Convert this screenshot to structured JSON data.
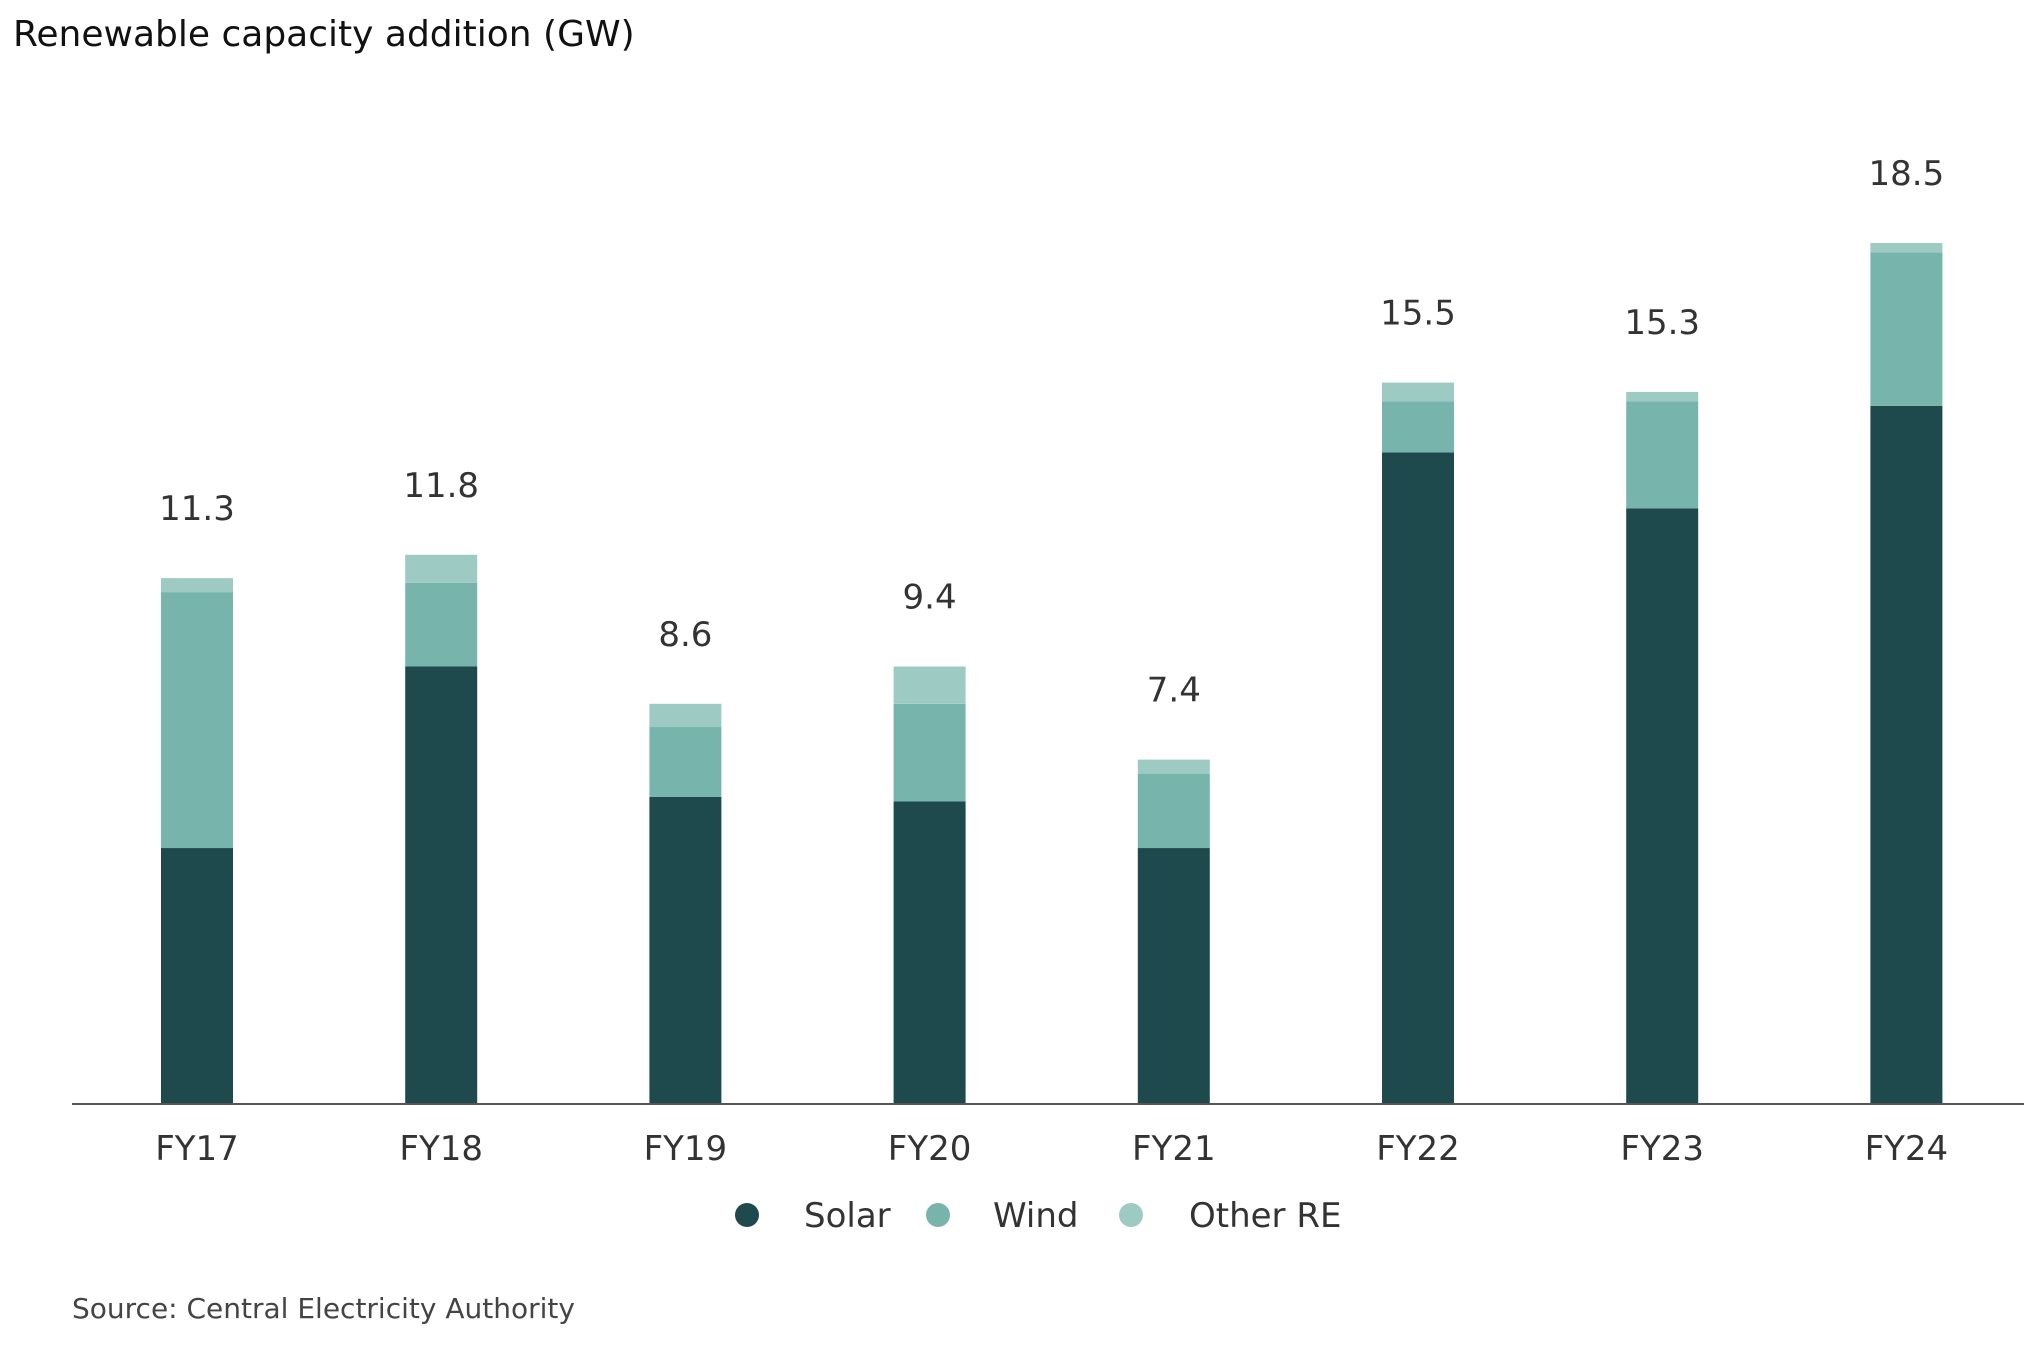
{
  "title": "Renewable capacity addition (GW)",
  "source": "Source: Central Electricity Authority",
  "chart_data": {
    "type": "bar",
    "stacked": true,
    "categories": [
      "FY17",
      "FY18",
      "FY19",
      "FY20",
      "FY21",
      "FY22",
      "FY23",
      "FY24"
    ],
    "series": [
      {
        "name": "Solar",
        "color": "#1e4a4e",
        "values": [
          5.5,
          9.4,
          6.6,
          6.5,
          5.5,
          14.0,
          12.8,
          15.0
        ]
      },
      {
        "name": "Wind",
        "color": "#77b5ac",
        "values": [
          5.5,
          1.8,
          1.5,
          2.1,
          1.6,
          1.1,
          2.3,
          3.3
        ]
      },
      {
        "name": "Other RE",
        "color": "#9ecac4",
        "values": [
          0.3,
          0.6,
          0.5,
          0.8,
          0.3,
          0.4,
          0.2,
          0.2
        ]
      }
    ],
    "totals": [
      "11.3",
      "11.8",
      "8.6",
      "9.4",
      "7.4",
      "15.5",
      "15.3",
      "18.5"
    ],
    "ylim": [
      0,
      18.5
    ],
    "grid": false,
    "legend_position": "bottom-center",
    "xlabel": "",
    "ylabel": ""
  }
}
